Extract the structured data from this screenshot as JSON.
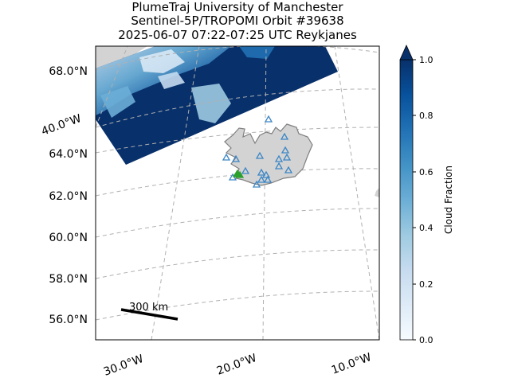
{
  "title": {
    "line1": "PlumeTraj    University of Manchester",
    "line2": "Sentinel-5P/TROPOMI Orbit #39638",
    "line3": "2025-06-07   07:22-07:25 UTC   Reykjanes"
  },
  "chart_data": {
    "type": "map",
    "projection": "conic (rotated lat/lon graticule)",
    "lat_ticks": [
      "68.0°N",
      "64.0°N",
      "62.0°N",
      "60.0°N",
      "58.0°N",
      "56.0°N"
    ],
    "lon_ticks": [
      "40.0°W",
      "30.0°W",
      "20.0°W",
      "10.0°W"
    ],
    "grid": true,
    "colorbar": {
      "label": "Cloud Fraction",
      "range": [
        0.0,
        1.0
      ],
      "ticks": [
        "1.0",
        "0.8",
        "0.6",
        "0.4",
        "0.2",
        "0.0"
      ],
      "colormap": "Blues",
      "extend": "max"
    },
    "scale_bar": {
      "label": "300 km"
    },
    "volcano_markers": {
      "marker": "triangle",
      "color_main": "#3b86c6",
      "color_active": "#2ca02c",
      "active_name": "Reykjanes"
    },
    "colors": {
      "land": "#d3d3d3",
      "coast": "#7f7f7f",
      "outside_swath": "#ffffff",
      "dark_cloud": "#08306b"
    }
  }
}
